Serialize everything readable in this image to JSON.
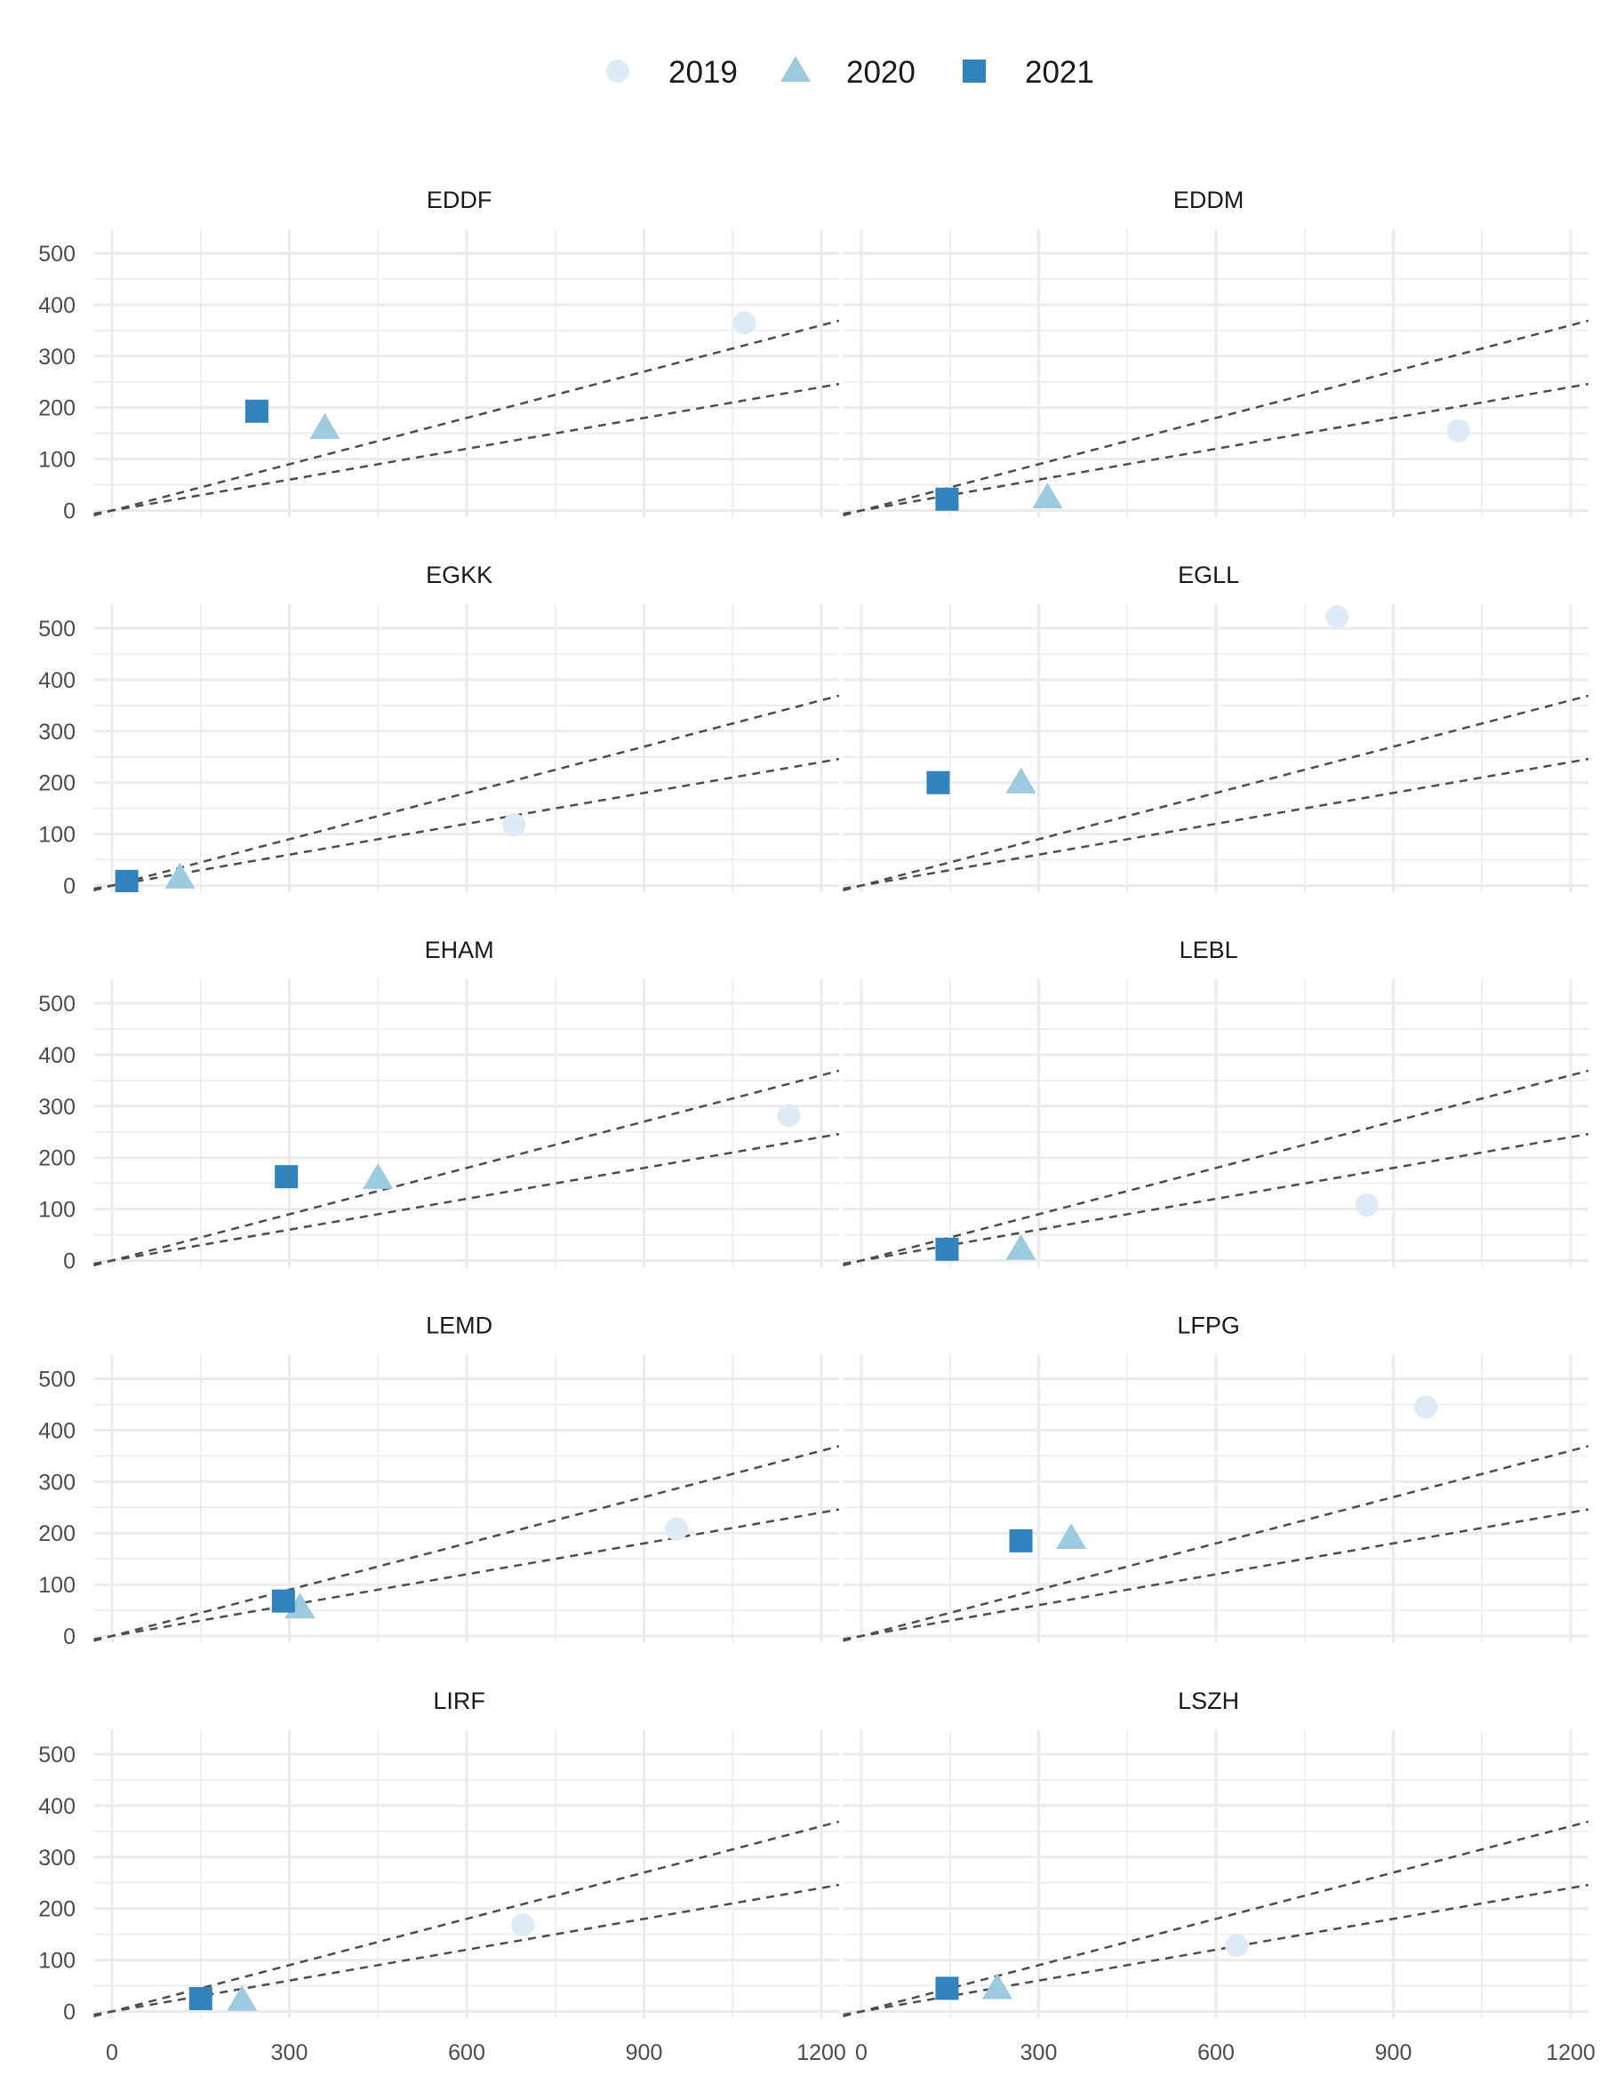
{
  "chart_data": {
    "type": "scatter",
    "legend": {
      "position": "top",
      "entries": [
        {
          "name": "2019",
          "shape": "circle",
          "color": "#deebf7"
        },
        {
          "name": "2020",
          "shape": "triangle",
          "color": "#9ecae1"
        },
        {
          "name": "2021",
          "shape": "square",
          "color": "#3182bd"
        }
      ]
    },
    "xlim": [
      -31,
      1230
    ],
    "ylim": [
      -13,
      547
    ],
    "x_ticks": [
      "0",
      "300",
      "600",
      "900",
      "1200"
    ],
    "x_tick_values": [
      0,
      300,
      600,
      900,
      1200
    ],
    "y_ticks": [
      "0",
      "100",
      "200",
      "300",
      "400",
      "500"
    ],
    "y_tick_values": [
      0,
      100,
      200,
      300,
      400,
      500
    ],
    "reference_lines": [
      {
        "slope": 0.3,
        "style": "dashed",
        "color": "#4d4d4d"
      },
      {
        "slope": 0.2,
        "style": "dashed",
        "color": "#4d4d4d"
      }
    ],
    "grid": true,
    "panels": [
      {
        "title": "EDDF",
        "points": {
          "2019": [
            1070,
            365
          ],
          "2020": [
            360,
            160
          ],
          "2021": [
            245,
            193
          ]
        }
      },
      {
        "title": "EDDM",
        "points": {
          "2019": [
            1010,
            155
          ],
          "2020": [
            315,
            25
          ],
          "2021": [
            145,
            22
          ]
        }
      },
      {
        "title": "EGKK",
        "points": {
          "2019": [
            680,
            118
          ],
          "2020": [
            115,
            15
          ],
          "2021": [
            25,
            8
          ]
        }
      },
      {
        "title": "EGLL",
        "points": {
          "2019": [
            805,
            522
          ],
          "2020": [
            270,
            200
          ],
          "2021": [
            130,
            200
          ]
        }
      },
      {
        "title": "EHAM",
        "points": {
          "2019": [
            1145,
            282
          ],
          "2020": [
            450,
            160
          ],
          "2021": [
            295,
            163
          ]
        }
      },
      {
        "title": "LEBL",
        "points": {
          "2019": [
            855,
            108
          ],
          "2020": [
            270,
            22
          ],
          "2021": [
            145,
            22
          ]
        }
      },
      {
        "title": "LEMD",
        "points": {
          "2019": [
            955,
            208
          ],
          "2020": [
            318,
            55
          ],
          "2021": [
            290,
            68
          ]
        }
      },
      {
        "title": "LFPG",
        "points": {
          "2019": [
            955,
            445
          ],
          "2020": [
            355,
            190
          ],
          "2021": [
            270,
            185
          ]
        }
      },
      {
        "title": "LIRF",
        "points": {
          "2019": [
            695,
            168
          ],
          "2020": [
            220,
            22
          ],
          "2021": [
            150,
            25
          ]
        }
      },
      {
        "title": "LSZH",
        "points": {
          "2019": [
            635,
            128
          ],
          "2020": [
            230,
            45
          ],
          "2021": [
            145,
            45
          ]
        }
      }
    ]
  }
}
